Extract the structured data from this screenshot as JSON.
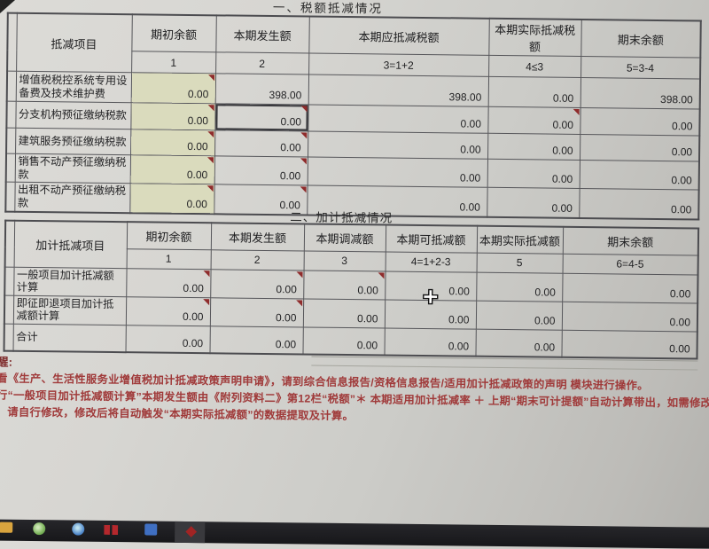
{
  "sections": {
    "title1": "一、税额抵减情况",
    "title2": "二、加计抵减情况"
  },
  "table1": {
    "item_header": "抵减项目",
    "columns": [
      "期初余额",
      "本期发生额",
      "本期应抵减税额",
      "本期实际抵减税额",
      "期末余额"
    ],
    "formulas": [
      "1",
      "2",
      "3=1+2",
      "4≤3",
      "5=3-4"
    ],
    "rows": [
      {
        "label": "增值税税控系统专用设备费及技术维护费",
        "values": [
          "0.00",
          "398.00",
          "398.00",
          "0.00",
          "398.00"
        ],
        "markers": [
          0
        ]
      },
      {
        "label": "分支机构预征缴纳税款",
        "values": [
          "0.00",
          "0.00",
          "0.00",
          "0.00",
          "0.00"
        ],
        "markers": [
          0,
          1,
          3
        ],
        "selected": 1
      },
      {
        "label": "建筑服务预征缴纳税款",
        "values": [
          "0.00",
          "0.00",
          "0.00",
          "0.00",
          "0.00"
        ],
        "markers": [
          0,
          1
        ]
      },
      {
        "label": "销售不动产预征缴纳税款",
        "values": [
          "0.00",
          "0.00",
          "0.00",
          "0.00",
          "0.00"
        ],
        "markers": [
          0,
          1
        ]
      },
      {
        "label": "出租不动产预征缴纳税款",
        "values": [
          "0.00",
          "0.00",
          "0.00",
          "0.00",
          "0.00"
        ],
        "markers": [
          0,
          1
        ]
      }
    ]
  },
  "table2": {
    "item_header": "加计抵减项目",
    "columns": [
      "期初余额",
      "本期发生额",
      "本期调减额",
      "本期可抵减额",
      "本期实际抵减额",
      "期末余额"
    ],
    "formulas": [
      "1",
      "2",
      "3",
      "4=1+2-3",
      "5",
      "6=4-5"
    ],
    "rows": [
      {
        "label": "一般项目加计抵减额计算",
        "values": [
          "0.00",
          "0.00",
          "0.00",
          "0.00",
          "0.00",
          "0.00"
        ],
        "markers": [
          0,
          1,
          2
        ]
      },
      {
        "label": "即征即退项目加计抵减额计算",
        "values": [
          "0.00",
          "0.00",
          "0.00",
          "0.00",
          "0.00",
          "0.00"
        ],
        "markers": [
          0,
          1
        ]
      },
      {
        "label": "合计",
        "values": [
          "0.00",
          "0.00",
          "0.00",
          "0.00",
          "0.00",
          "0.00"
        ],
        "markers": []
      }
    ]
  },
  "notes": {
    "line1": "醒:",
    "line2": "看《生产、生活性服务业增值税加计抵减政策声明申请》，请到综合信息报告/资格信息报告/适用加计抵减政策的声明  模块进行操作。",
    "line3": "行“一般项目加计抵减额计算”本期发生额由《附列资料二》第12栏“税额”＊ 本期适用加计抵减率 ＋ 上期“期末可计提额”自动计算带出，如需修改“本期发",
    "line4": "，请自行修改，修改后将自动触发“本期实际抵减额”的数据提取及计算。"
  },
  "colors": {
    "shaded_cell": "#dadbbd",
    "marker_red": "#8f2c2c",
    "note_red": "#a03a3a",
    "selection_border": "#37373b",
    "taskbar_bg": "#1f1f22"
  },
  "taskbar": {
    "icons": [
      "folder-icon",
      "green-app-icon",
      "browser-globe-icon",
      "red-app-icon",
      "blue-app-icon",
      "diamond-app-icon"
    ]
  }
}
